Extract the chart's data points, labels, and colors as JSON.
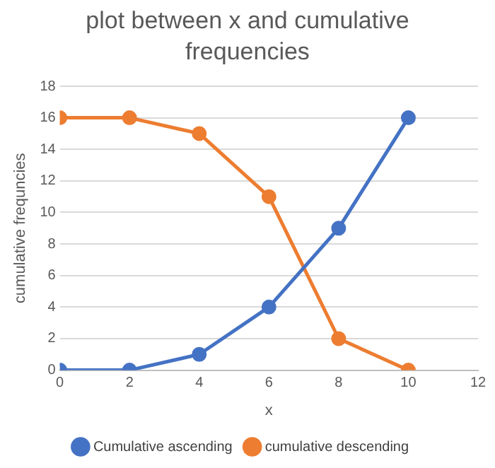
{
  "chart_data": {
    "type": "line",
    "title": "plot between x and cumulative frequencies",
    "xlabel": "x",
    "ylabel": "cumulative frequncies",
    "x": [
      0,
      2,
      4,
      6,
      8,
      10
    ],
    "series": [
      {
        "name": "Cumulative ascending",
        "color": "#4472c4",
        "values": [
          0,
          0,
          1,
          4,
          9,
          16
        ]
      },
      {
        "name": "cumulative descending",
        "color": "#ed7d31",
        "values": [
          16,
          16,
          15,
          11,
          2,
          0
        ]
      }
    ],
    "xlim": [
      0,
      12
    ],
    "xticks": [
      0,
      2,
      4,
      6,
      8,
      10,
      12
    ],
    "ylim": [
      0,
      18
    ],
    "yticks": [
      0,
      2,
      4,
      6,
      8,
      10,
      12,
      14,
      16,
      18
    ],
    "grid": "y",
    "legend": "bottom",
    "marker": "circle",
    "line_style": "solid"
  }
}
